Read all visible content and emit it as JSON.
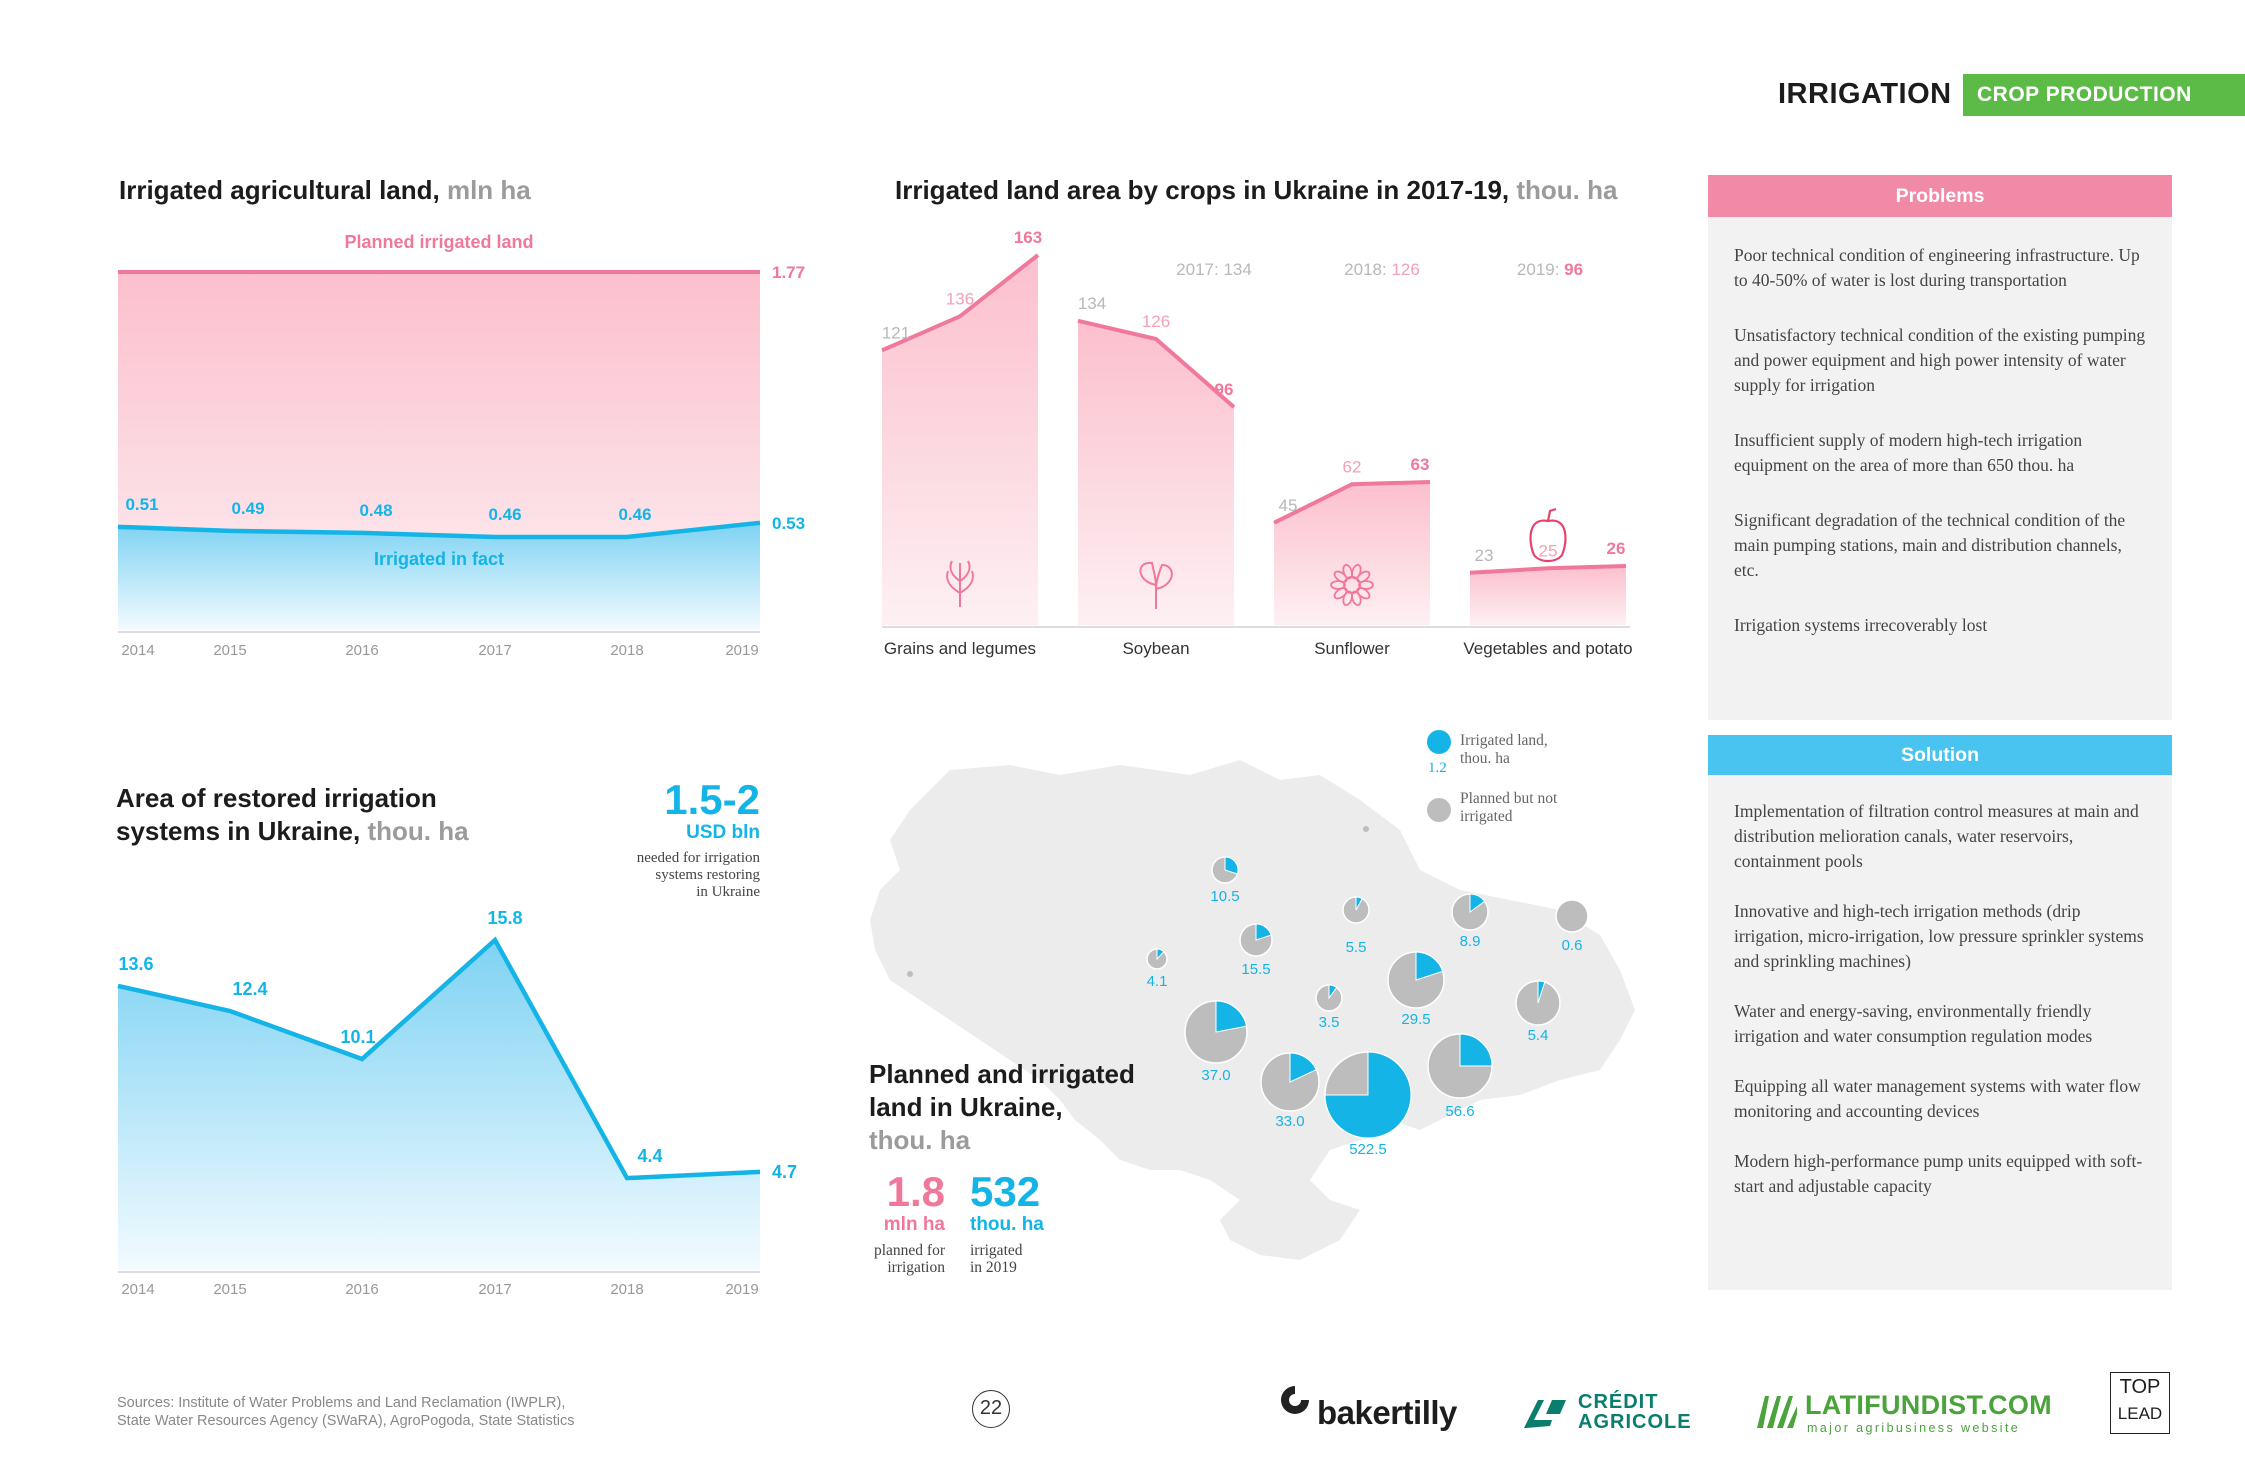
{
  "header": {
    "section": "IRRIGATION",
    "tag": "CROP PRODUCTION"
  },
  "colors": {
    "pink": "#f0789a",
    "pink_fill": "#fcc6d3",
    "blue": "#14b4e6",
    "blue_fill": "#87d5f4",
    "gray": "#bdbdbd",
    "green": "#5cba47",
    "map_land": "#ececec"
  },
  "chart1": {
    "title": "Irrigated agricultural land,",
    "unit": "mln ha",
    "planned_label": "Planned irrigated land",
    "fact_label": "Irrigated in fact"
  },
  "chart2": {
    "title": "Irrigated land area by crops in Ukraine in 2017-19,",
    "unit": "thou. ha",
    "legend": [
      {
        "year": "2017:",
        "value": "134"
      },
      {
        "year": "2018:",
        "value": "126"
      },
      {
        "year": "2019:",
        "value": "96"
      }
    ]
  },
  "chart3": {
    "title_line1": "Area of restored irrigation",
    "title_line2": "systems in Ukraine,",
    "unit": "thou. ha",
    "callout_value": "1.5-2",
    "callout_unit": "USD bln",
    "callout_text_lines": [
      "needed for irrigation",
      "systems restoring",
      "in Ukraine"
    ]
  },
  "map": {
    "title_line1": "Planned and irrigated",
    "title_line2": "land in Ukraine,",
    "unit": "thou. ha",
    "stat1_value": "1.8",
    "stat1_unit": "mln ha",
    "stat1_text_lines": [
      "planned for",
      "irrigation"
    ],
    "stat2_value": "532",
    "stat2_unit": "thou. ha",
    "stat2_text_lines": [
      "irrigated",
      "in 2019"
    ],
    "legend_irrigated_lines": [
      "Irrigated land,",
      "thou. ha"
    ],
    "legend_irrigated_value": "1.2",
    "legend_planned_lines": [
      "Planned but not",
      "irrigated"
    ],
    "regions": [
      {
        "label": "10.5",
        "irrigated_share": 0.3
      },
      {
        "label": "5.5",
        "irrigated_share": 0.08
      },
      {
        "label": "8.9",
        "irrigated_share": 0.15
      },
      {
        "label": "0.6",
        "irrigated_share": 0.0
      },
      {
        "label": "4.1",
        "irrigated_share": 0.12
      },
      {
        "label": "15.5",
        "irrigated_share": 0.2
      },
      {
        "label": "3.5",
        "irrigated_share": 0.1
      },
      {
        "label": "29.5",
        "irrigated_share": 0.2
      },
      {
        "label": "5.4",
        "irrigated_share": 0.05
      },
      {
        "label": "37.0",
        "irrigated_share": 0.22
      },
      {
        "label": "33.0",
        "irrigated_share": 0.18
      },
      {
        "label": "522.5",
        "irrigated_share": 0.75
      },
      {
        "label": "56.6",
        "irrigated_share": 0.25
      }
    ]
  },
  "problems": {
    "title": "Problems",
    "items": [
      "Poor technical condition of engineering infrastructure. Up to 40-50% of water is lost during transportation",
      "Unsatisfactory technical condition of the existing pumping and power equipment and high power intensity of water supply for irrigation",
      "Insufficient supply of modern high-tech irrigation equipment on the area of more than 650 thou. ha",
      "Significant degradation of the technical condition of the main pumping stations, main and distribution channels, etc.",
      "Irrigation systems irrecoverably lost"
    ]
  },
  "solution": {
    "title": "Solution",
    "items": [
      "Implementation of filtration control measures at main and distribution melioration canals, water reservoirs, containment pools",
      "Innovative and high-tech irrigation methods (drip irrigation, micro-irrigation, low pressure sprinkler systems and sprinkling machines)",
      "Water and energy-saving, environmentally friendly irrigation and water consumption regulation modes",
      "Equipping all water management systems with water flow monitoring and accounting devices",
      "Modern high-performance pump units equipped with soft-start and adjustable capacity"
    ]
  },
  "footer": {
    "sources_line1": "Sources: Institute of Water Problems and Land Reclamation (IWPLR),",
    "sources_line2": "State Water Resources Agency (SWaRA), AgroPogoda, State Statistics",
    "page": "22",
    "logo1": "bakertilly",
    "logo2_line1": "CRÉDIT",
    "logo2_line2": "AGRICOLE",
    "logo3": "LATIFUNDIST.COM",
    "logo3_sub": "major agribusiness website",
    "logo4_line1": "TOP",
    "logo4_line2": "LEAD"
  },
  "chart_data": [
    {
      "type": "area",
      "title": "Irrigated agricultural land, mln ha",
      "x": [
        "2014",
        "2015",
        "2016",
        "2017",
        "2018",
        "2019"
      ],
      "series": [
        {
          "name": "Planned irrigated land",
          "values": [
            1.77,
            1.77,
            1.77,
            1.77,
            1.77,
            1.77
          ],
          "end_label": "1.77"
        },
        {
          "name": "Irrigated in fact",
          "values": [
            0.51,
            0.49,
            0.48,
            0.46,
            0.46,
            0.53
          ],
          "labels": [
            "0.51",
            "0.49",
            "0.48",
            "0.46",
            "0.46",
            "0.53"
          ]
        }
      ]
    },
    {
      "type": "area",
      "title": "Irrigated land area by crops in Ukraine in 2017-19, thou. ha",
      "categories": [
        "Grains and legumes",
        "Soybean",
        "Sunflower",
        "Vegetables and potato"
      ],
      "x": [
        "2017",
        "2018",
        "2019"
      ],
      "series": [
        {
          "name": "Grains and legumes",
          "values": [
            121,
            136,
            163
          ]
        },
        {
          "name": "Soybean",
          "values": [
            134,
            126,
            96
          ]
        },
        {
          "name": "Sunflower",
          "values": [
            45,
            62,
            63
          ]
        },
        {
          "name": "Vegetables and potato",
          "values": [
            23,
            25,
            26
          ]
        }
      ]
    },
    {
      "type": "area",
      "title": "Area of restored irrigation systems in Ukraine, thou. ha",
      "x": [
        "2014",
        "2015",
        "2016",
        "2017",
        "2018",
        "2019"
      ],
      "values": [
        13.6,
        12.4,
        10.1,
        15.8,
        4.4,
        4.7
      ],
      "labels": [
        "13.6",
        "12.4",
        "10.1",
        "15.8",
        "4.4",
        "4.7"
      ]
    }
  ]
}
